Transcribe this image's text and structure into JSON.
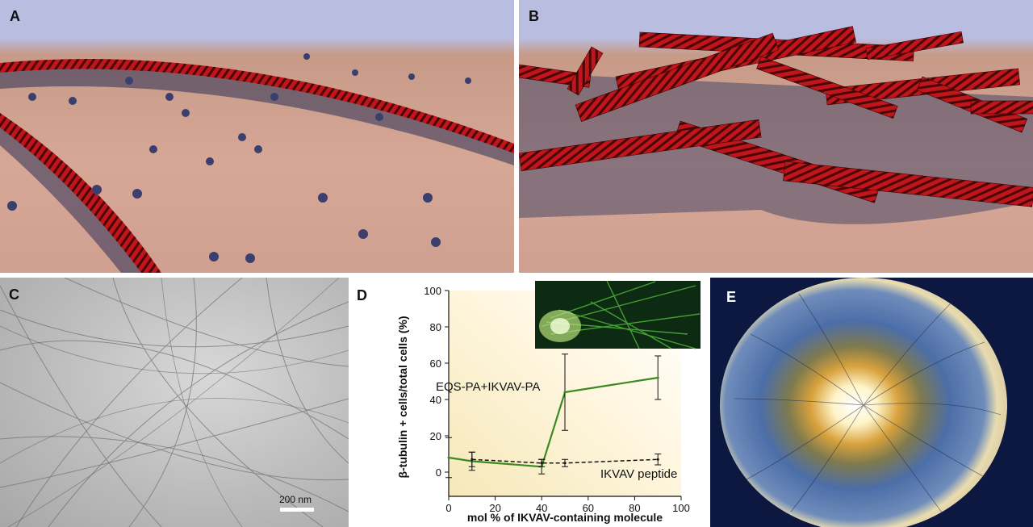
{
  "panels": {
    "a": "A",
    "b": "B",
    "c": "C",
    "d": "D",
    "e": "E"
  },
  "scale_bar_label": "200 nm",
  "colors": {
    "fiber_red": "#c0161b",
    "plot_line": "#3a8a1f",
    "surface": "#d7a796",
    "sky": "#b9bde0"
  },
  "chart_data": {
    "type": "line",
    "xlabel": "mol % of IKVAV-containing molecule",
    "ylabel": "β-tubulin + cells/total cells (%)",
    "xlim": [
      0,
      100
    ],
    "ylim": [
      0,
      100
    ],
    "xticks": [
      0,
      20,
      40,
      60,
      80,
      100
    ],
    "yticks": [
      0,
      20,
      40,
      60,
      80,
      100
    ],
    "series": [
      {
        "name": "EQS-PA+IKVAV-PA",
        "style": "solid",
        "color": "#3a8a1f",
        "x": [
          0,
          10,
          40,
          50,
          90
        ],
        "y": [
          8,
          6,
          3,
          44,
          52
        ],
        "err": [
          11,
          5,
          4,
          21,
          12
        ]
      },
      {
        "name": "IKVAV peptide",
        "style": "dashed",
        "color": "#111111",
        "x": [
          10,
          40,
          50,
          90
        ],
        "y": [
          7,
          5,
          5,
          7
        ],
        "err": [
          4,
          2,
          2,
          3
        ]
      }
    ]
  }
}
